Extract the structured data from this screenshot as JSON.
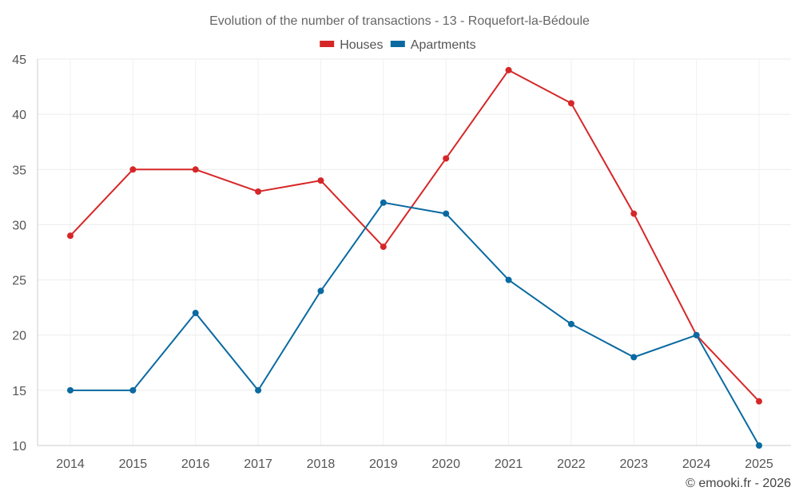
{
  "chart_data": {
    "type": "line",
    "title": "Evolution of the number of transactions - 13 - Roquefort-la-Bédoule",
    "categories": [
      "2014",
      "2015",
      "2016",
      "2017",
      "2018",
      "2019",
      "2020",
      "2021",
      "2022",
      "2023",
      "2024",
      "2025"
    ],
    "series": [
      {
        "name": "Houses",
        "color": "#d62728",
        "values": [
          29,
          35,
          35,
          33,
          34,
          28,
          36,
          44,
          41,
          31,
          20,
          14
        ]
      },
      {
        "name": "Apartments",
        "color": "#0a6aa1",
        "values": [
          15,
          15,
          22,
          15,
          24,
          32,
          31,
          25,
          21,
          18,
          20,
          10
        ]
      }
    ],
    "ylim": [
      10,
      45
    ],
    "yticks": [
      10,
      15,
      20,
      25,
      30,
      35,
      40,
      45
    ],
    "xlabel": "",
    "ylabel": "",
    "grid": true,
    "legend": "top-center"
  },
  "credit": "© emooki.fr - 2026"
}
